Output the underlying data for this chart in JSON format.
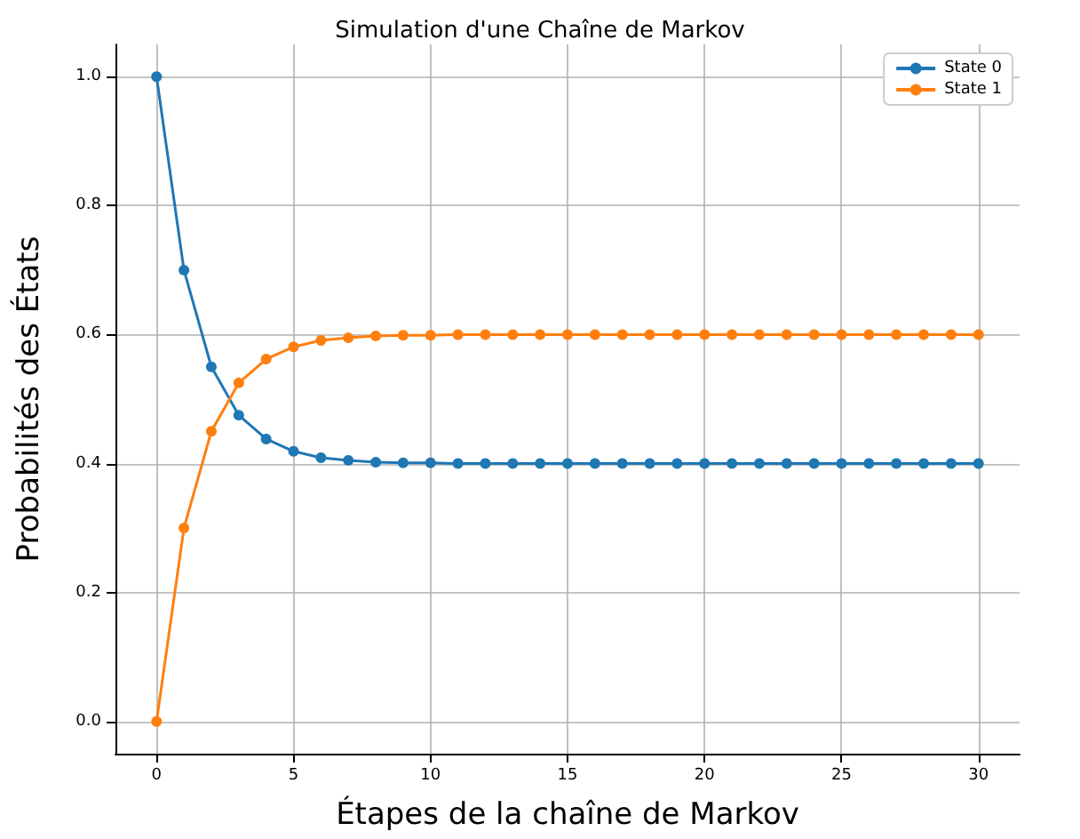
{
  "chart_data": {
    "type": "line",
    "title": "Simulation d'une Chaîne de Markov",
    "xlabel": "Étapes de la chaîne de Markov",
    "ylabel": "Probabilités des États",
    "x": [
      0,
      1,
      2,
      3,
      4,
      5,
      6,
      7,
      8,
      9,
      10,
      11,
      12,
      13,
      14,
      15,
      16,
      17,
      18,
      19,
      20,
      21,
      22,
      23,
      24,
      25,
      26,
      27,
      28,
      29,
      30
    ],
    "series": [
      {
        "name": "State 0",
        "color": "#1f77b4",
        "values": [
          1.0,
          0.7,
          0.55,
          0.475,
          0.438,
          0.419,
          0.409,
          0.405,
          0.402,
          0.401,
          0.401,
          0.4,
          0.4,
          0.4,
          0.4,
          0.4,
          0.4,
          0.4,
          0.4,
          0.4,
          0.4,
          0.4,
          0.4,
          0.4,
          0.4,
          0.4,
          0.4,
          0.4,
          0.4,
          0.4,
          0.4
        ]
      },
      {
        "name": "State 1",
        "color": "#ff7f0e",
        "values": [
          0.0,
          0.3,
          0.45,
          0.525,
          0.562,
          0.581,
          0.591,
          0.595,
          0.598,
          0.599,
          0.599,
          0.6,
          0.6,
          0.6,
          0.6,
          0.6,
          0.6,
          0.6,
          0.6,
          0.6,
          0.6,
          0.6,
          0.6,
          0.6,
          0.6,
          0.6,
          0.6,
          0.6,
          0.6,
          0.6,
          0.6
        ]
      }
    ],
    "xlim": [
      -1.5,
      31.5
    ],
    "xticks": [
      0,
      5,
      10,
      15,
      20,
      25,
      30
    ],
    "ylim": [
      -0.05,
      1.05
    ],
    "yticks": [
      {
        "value": 0,
        "label": "0.0"
      },
      {
        "value": 0.2,
        "label": "0.2"
      },
      {
        "value": 0.4,
        "label": "0.4"
      },
      {
        "value": 0.6,
        "label": "0.6"
      },
      {
        "value": 0.8,
        "label": "0.8"
      },
      {
        "value": 1,
        "label": "1.0"
      }
    ],
    "grid": true,
    "legend": "top right",
    "marker": "circle",
    "line_style": "solid"
  }
}
